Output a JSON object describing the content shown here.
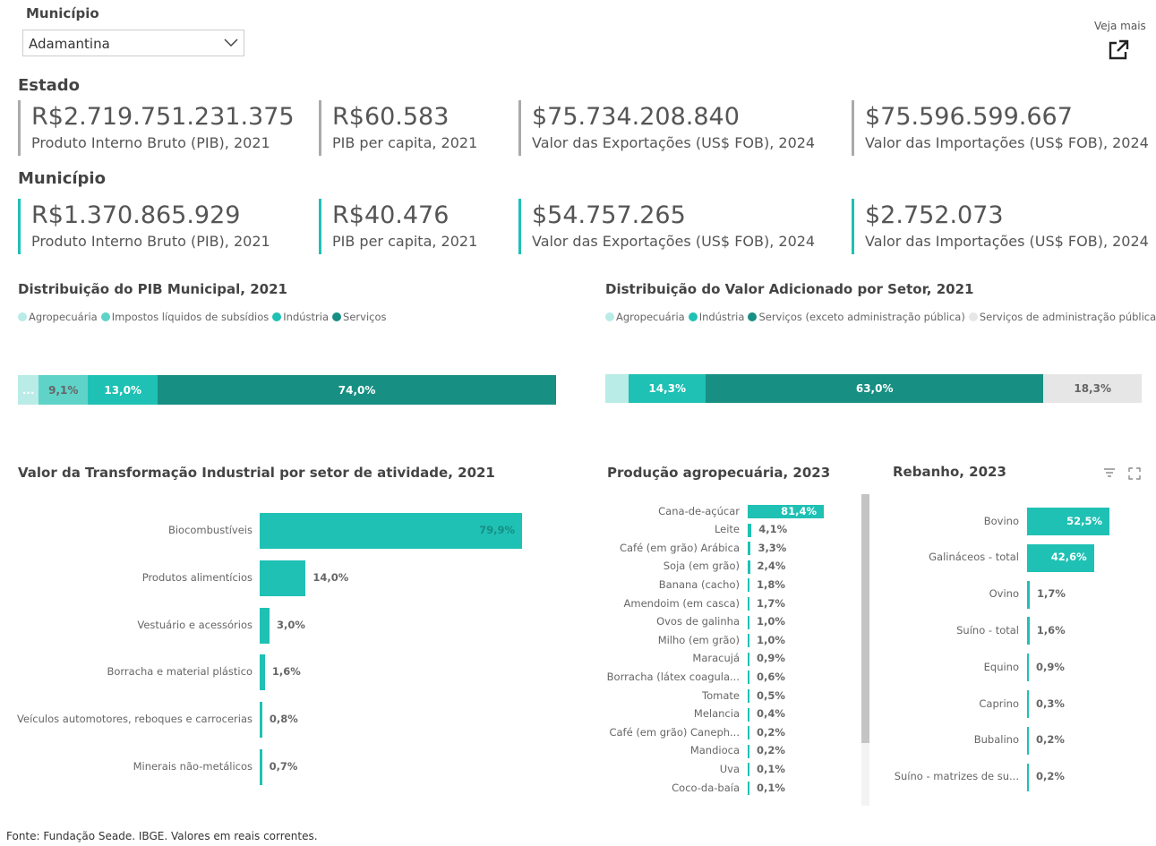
{
  "filter": {
    "label": "Município",
    "value": "Adamantina"
  },
  "veja_mais": "Veja mais",
  "estado": {
    "title": "Estado",
    "kpis": [
      {
        "value": "R$2.719.751.231.375",
        "label": "Produto Interno Bruto (PIB), 2021"
      },
      {
        "value": "R$60.583",
        "label": "PIB per capita, 2021"
      },
      {
        "value": "$75.734.208.840",
        "label": "Valor das Exportações (US$ FOB), 2024"
      },
      {
        "value": "$75.596.599.667",
        "label": "Valor das Importações (US$ FOB), 2024"
      }
    ]
  },
  "municipio": {
    "title": "Município",
    "kpis": [
      {
        "value": "R$1.370.865.929",
        "label": "Produto Interno Bruto (PIB), 2021"
      },
      {
        "value": "R$40.476",
        "label": "PIB per capita, 2021"
      },
      {
        "value": "$54.757.265",
        "label": "Valor das Exportações (US$ FOB), 2024"
      },
      {
        "value": "$2.752.073",
        "label": "Valor das Importações (US$ FOB), 2024"
      }
    ]
  },
  "footer": "Fonte: Fundação Seade. IBGE. Valores em reais correntes.",
  "colors": {
    "agro": "#b9ebe7",
    "impostos": "#5fd3c8",
    "industria": "#1fc1b4",
    "servicos": "#178f83",
    "adm": "#e6e6e6"
  },
  "chart_data": [
    {
      "type": "bar",
      "stacked": true,
      "orientation": "horizontal",
      "title": "Distribuição do PIB Municipal, 2021",
      "legend": "top-left",
      "series": [
        {
          "name": "Agropecuária",
          "value": 3.9,
          "label": "...",
          "color": "#b9ebe7"
        },
        {
          "name": "Impostos líquidos de subsídios",
          "value": 9.1,
          "label": "9,1%",
          "color": "#5fd3c8"
        },
        {
          "name": "Indústria",
          "value": 13.0,
          "label": "13,0%",
          "color": "#1fc1b4"
        },
        {
          "name": "Serviços",
          "value": 74.0,
          "label": "74,0%",
          "color": "#178f83"
        }
      ]
    },
    {
      "type": "bar",
      "stacked": true,
      "orientation": "horizontal",
      "title": "Distribuição do Valor Adicionado por Setor, 2021",
      "legend": "top-left",
      "series": [
        {
          "name": "Agropecuária",
          "value": 4.4,
          "label": "",
          "color": "#b9ebe7"
        },
        {
          "name": "Indústria",
          "value": 14.3,
          "label": "14,3%",
          "color": "#1fc1b4"
        },
        {
          "name": "Serviços (exceto administração pública)",
          "value": 63.0,
          "label": "63,0%",
          "color": "#178f83"
        },
        {
          "name": "Serviços de administração pública",
          "value": 18.3,
          "label": "18,3%",
          "color": "#e6e6e6"
        }
      ]
    },
    {
      "type": "bar",
      "orientation": "horizontal",
      "title": "Valor da Transformação Industrial por setor de atividade, 2021",
      "categories": [
        "Biocombustíveis",
        "Produtos alimentícios",
        "Vestuário e acessórios",
        "Borracha e material plástico",
        "Veículos automotores, reboques e carrocerias",
        "Minerais não-metálicos"
      ],
      "values": [
        79.9,
        14.0,
        3.0,
        1.6,
        0.8,
        0.7
      ],
      "labels": [
        "79,9%",
        "14,0%",
        "3,0%",
        "1,6%",
        "0,8%",
        "0,7%"
      ]
    },
    {
      "type": "bar",
      "orientation": "horizontal",
      "title": "Produção agropecuária, 2023",
      "categories": [
        "Cana-de-açúcar",
        "Leite",
        "Café (em grão) Arábica",
        "Soja (em grão)",
        "Banana (cacho)",
        "Amendoim (em casca)",
        "Ovos de galinha",
        "Milho (em grão)",
        "Maracujá",
        "Borracha (látex coagula...",
        "Tomate",
        "Melancia",
        "Café (em grão) Caneph...",
        "Mandioca",
        "Uva",
        "Coco-da-baía"
      ],
      "values": [
        81.4,
        4.1,
        3.3,
        2.4,
        1.8,
        1.7,
        1.0,
        1.0,
        0.9,
        0.6,
        0.5,
        0.4,
        0.2,
        0.2,
        0.1,
        0.1
      ],
      "labels": [
        "81,4%",
        "4,1%",
        "3,3%",
        "2,4%",
        "1,8%",
        "1,7%",
        "1,0%",
        "1,0%",
        "0,9%",
        "0,6%",
        "0,5%",
        "0,4%",
        "0,2%",
        "0,2%",
        "0,1%",
        "0,1%"
      ]
    },
    {
      "type": "bar",
      "orientation": "horizontal",
      "title": "Rebanho, 2023",
      "categories": [
        "Bovino",
        "Galináceos - total",
        "Ovino",
        "Suíno - total",
        "Equino",
        "Caprino",
        "Bubalino",
        "Suíno - matrizes de su..."
      ],
      "values": [
        52.5,
        42.6,
        1.7,
        1.6,
        0.9,
        0.3,
        0.2,
        0.2
      ],
      "labels": [
        "52,5%",
        "42,6%",
        "1,7%",
        "1,6%",
        "0,9%",
        "0,3%",
        "0,2%",
        "0,2%"
      ]
    }
  ]
}
